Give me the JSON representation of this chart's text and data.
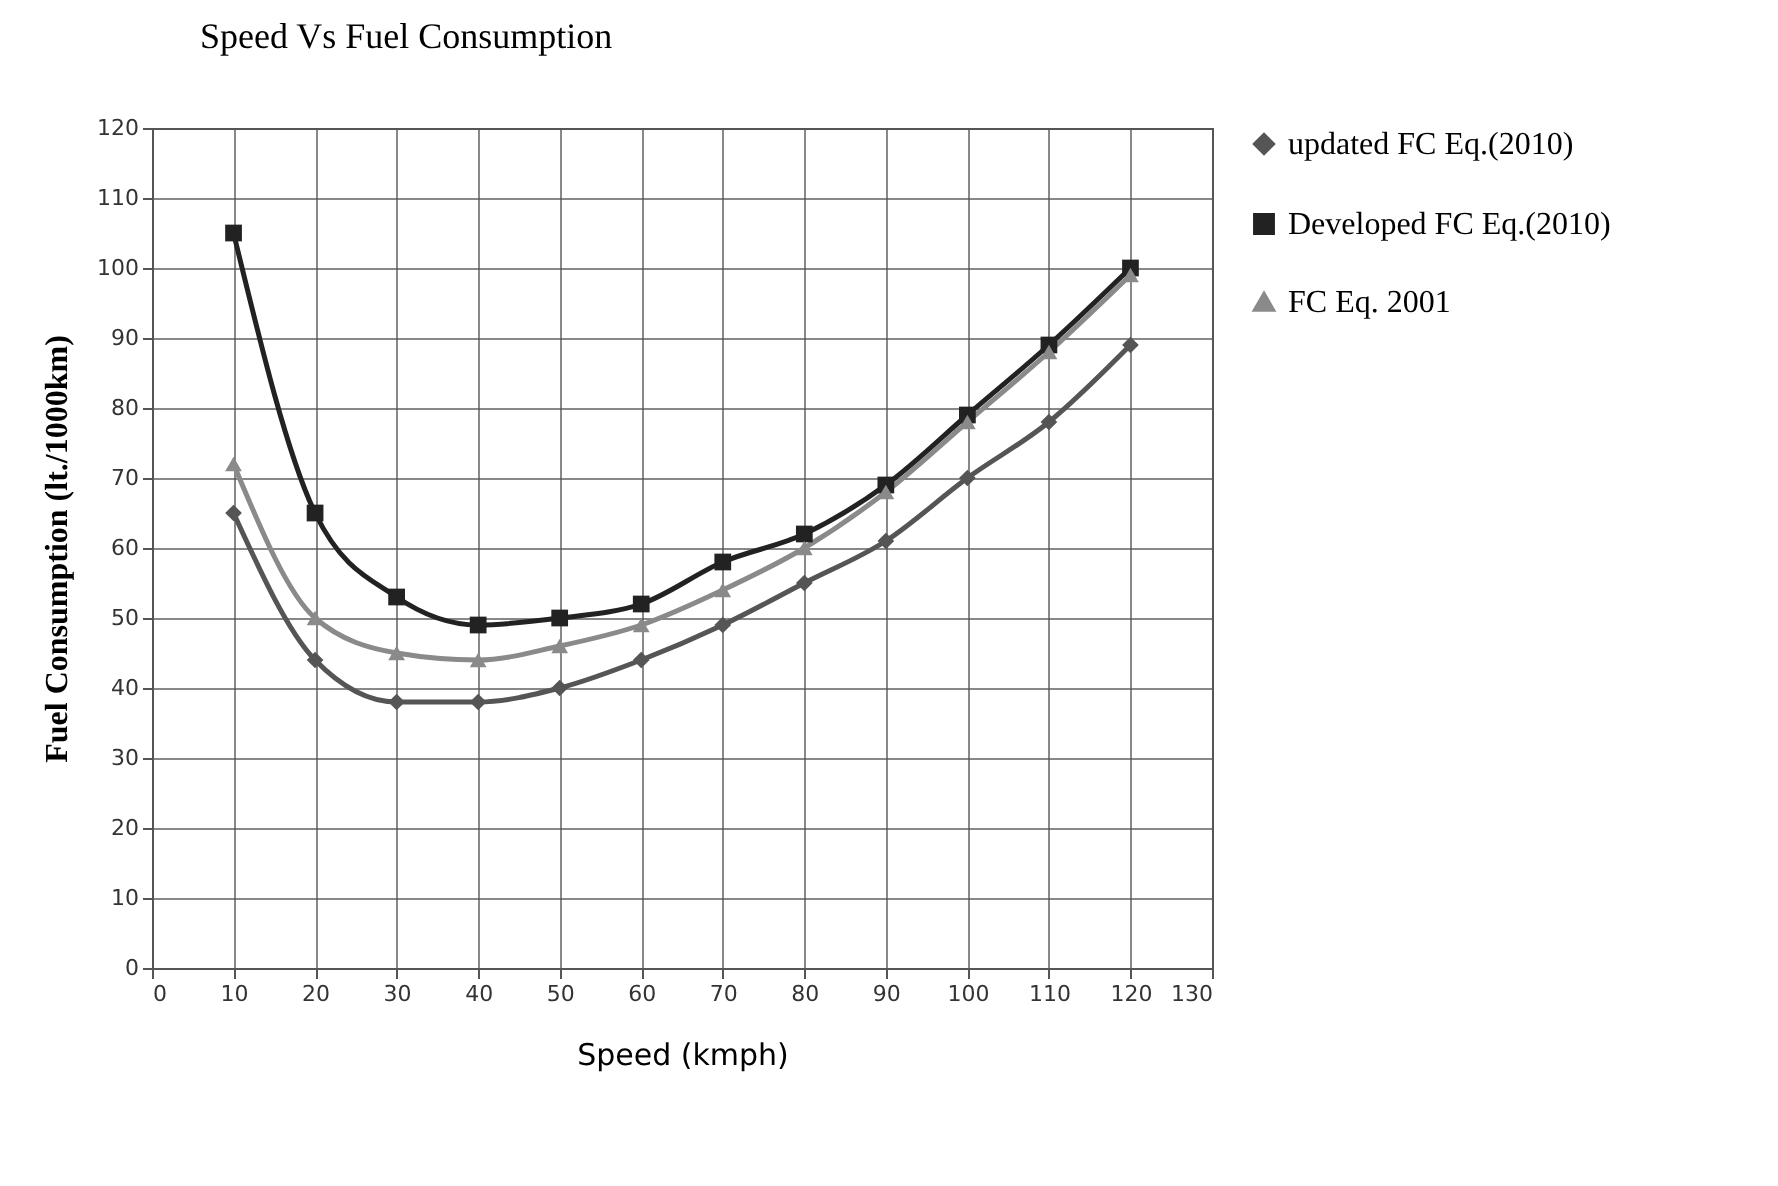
{
  "chart_data": {
    "type": "line",
    "title": "Speed Vs Fuel Consumption",
    "xlabel": "Speed (kmph)",
    "ylabel": "Fuel Consumption (lt./1000km)",
    "x": [
      10,
      20,
      30,
      40,
      50,
      60,
      70,
      80,
      90,
      100,
      110,
      120
    ],
    "series": [
      {
        "name": "updated FC Eq.(2010)",
        "color": "#555555",
        "marker": "diamond",
        "values": [
          65,
          44,
          38,
          38,
          40,
          44,
          49,
          55,
          61,
          70,
          78,
          89
        ]
      },
      {
        "name": "Developed  FC Eq.(2010)",
        "color": "#222222",
        "marker": "square",
        "values": [
          105,
          65,
          53,
          49,
          50,
          52,
          58,
          62,
          69,
          79,
          89,
          100
        ]
      },
      {
        "name": "FC Eq. 2001",
        "color": "#8a8a8a",
        "marker": "triangle",
        "values": [
          72,
          50,
          45,
          44,
          46,
          49,
          54,
          60,
          68,
          78,
          88,
          99
        ]
      }
    ],
    "xlim": [
      0,
      130
    ],
    "xticks": [
      0,
      10,
      20,
      30,
      40,
      50,
      60,
      70,
      80,
      90,
      100,
      110,
      120,
      130
    ],
    "ylim": [
      0,
      120
    ],
    "yticks": [
      0,
      10,
      20,
      30,
      40,
      50,
      60,
      70,
      80,
      90,
      100,
      110,
      120
    ],
    "grid": true,
    "legend": "right",
    "line_style": "solid"
  }
}
